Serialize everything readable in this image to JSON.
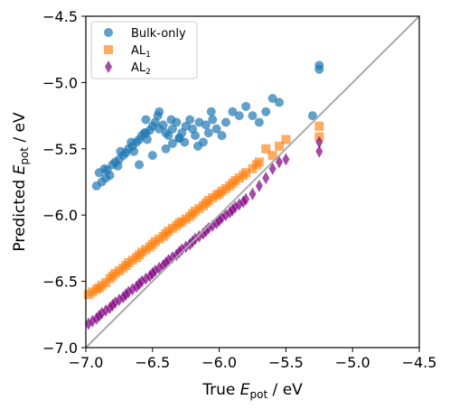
{
  "chart_data": {
    "type": "scatter",
    "xlabel_main": "True ",
    "xlabel_sym": "E",
    "xlabel_sub": "pot",
    "xlabel_unit": " / eV",
    "ylabel_main": "Predicted ",
    "ylabel_sym": "E",
    "ylabel_sub": "pot",
    "ylabel_unit": " / eV",
    "xlim": [
      -7.0,
      -4.5
    ],
    "ylim": [
      -7.0,
      -4.5
    ],
    "xticks": [
      -7.0,
      -6.5,
      -6.0,
      -5.5,
      -5.0,
      -4.5
    ],
    "xtick_labels": [
      "−7.0",
      "−6.5",
      "−6.0",
      "−5.5",
      "−5.0",
      "−4.5"
    ],
    "yticks": [
      -7.0,
      -6.5,
      -6.0,
      -5.5,
      -5.0,
      -4.5
    ],
    "ytick_labels": [
      "−7.0",
      "−6.5",
      "−6.0",
      "−5.5",
      "−5.0",
      "−4.5"
    ],
    "grid": false,
    "legend_position": "top-left",
    "reference_line": {
      "x": [
        -7.0,
        -4.5
      ],
      "y": [
        -7.0,
        -4.5
      ],
      "color": "#aaaaaa"
    },
    "series": [
      {
        "name": "Bulk-only",
        "marker": "circle",
        "color": "#1f77b4",
        "alpha": 0.7,
        "x": [
          -6.92,
          -6.88,
          -6.85,
          -6.82,
          -6.9,
          -6.86,
          -6.8,
          -6.78,
          -6.75,
          -6.72,
          -6.7,
          -6.68,
          -6.65,
          -6.62,
          -6.6,
          -6.58,
          -6.55,
          -6.52,
          -6.5,
          -6.48,
          -6.45,
          -6.42,
          -6.4,
          -6.38,
          -6.35,
          -6.32,
          -6.3,
          -6.28,
          -6.25,
          -6.22,
          -6.2,
          -6.18,
          -6.15,
          -6.12,
          -6.1,
          -6.08,
          -6.05,
          -6.02,
          -5.98,
          -5.95,
          -5.9,
          -5.85,
          -5.8,
          -5.75,
          -5.7,
          -5.65,
          -5.6,
          -5.55,
          -5.3,
          -5.25,
          -5.25,
          -6.74,
          -6.66,
          -6.56,
          -6.46,
          -6.36,
          -6.26,
          -6.16,
          -6.06,
          -6.6,
          -6.5,
          -6.4,
          -6.3,
          -6.55,
          -6.45,
          -6.35,
          -6.84,
          -6.76,
          -6.64,
          -6.54
        ],
        "y": [
          -5.78,
          -5.75,
          -5.72,
          -5.7,
          -5.68,
          -5.65,
          -5.62,
          -5.6,
          -5.58,
          -5.55,
          -5.53,
          -5.5,
          -5.48,
          -5.45,
          -5.43,
          -5.4,
          -5.38,
          -5.36,
          -5.33,
          -5.3,
          -5.35,
          -5.32,
          -5.38,
          -5.4,
          -5.35,
          -5.3,
          -5.42,
          -5.38,
          -5.33,
          -5.28,
          -5.35,
          -5.4,
          -5.3,
          -5.45,
          -5.32,
          -5.38,
          -5.28,
          -5.35,
          -5.4,
          -5.3,
          -5.22,
          -5.25,
          -5.18,
          -5.25,
          -5.3,
          -5.22,
          -5.12,
          -5.15,
          -5.25,
          -4.9,
          -4.87,
          -5.52,
          -5.45,
          -5.38,
          -5.25,
          -5.28,
          -5.45,
          -5.48,
          -5.22,
          -5.62,
          -5.55,
          -5.5,
          -5.42,
          -5.28,
          -5.22,
          -5.46,
          -5.66,
          -5.63,
          -5.52,
          -5.43
        ]
      },
      {
        "name": "AL",
        "name_sub": "1",
        "marker": "square",
        "color": "#ff7f0e",
        "alpha": 0.65,
        "x": [
          -6.98,
          -6.95,
          -6.92,
          -6.9,
          -6.88,
          -6.85,
          -6.82,
          -6.8,
          -6.78,
          -6.75,
          -6.72,
          -6.7,
          -6.68,
          -6.65,
          -6.62,
          -6.6,
          -6.58,
          -6.55,
          -6.52,
          -6.5,
          -6.48,
          -6.45,
          -6.42,
          -6.4,
          -6.38,
          -6.35,
          -6.32,
          -6.3,
          -6.28,
          -6.25,
          -6.22,
          -6.2,
          -6.18,
          -6.15,
          -6.12,
          -6.1,
          -6.08,
          -6.05,
          -6.02,
          -6.0,
          -5.98,
          -5.95,
          -5.92,
          -5.9,
          -5.88,
          -5.85,
          -5.82,
          -5.8,
          -5.75,
          -5.72,
          -5.7,
          -5.65,
          -5.6,
          -5.55,
          -5.5,
          -5.25,
          -5.25
        ],
        "y": [
          -6.6,
          -6.58,
          -6.56,
          -6.55,
          -6.53,
          -6.51,
          -6.48,
          -6.46,
          -6.44,
          -6.42,
          -6.4,
          -6.38,
          -6.36,
          -6.34,
          -6.32,
          -6.3,
          -6.28,
          -6.26,
          -6.24,
          -6.22,
          -6.2,
          -6.18,
          -6.16,
          -6.14,
          -6.12,
          -6.1,
          -6.08,
          -6.06,
          -6.05,
          -6.03,
          -6.01,
          -5.99,
          -5.97,
          -5.95,
          -5.93,
          -5.91,
          -5.89,
          -5.87,
          -5.85,
          -5.84,
          -5.82,
          -5.8,
          -5.78,
          -5.76,
          -5.74,
          -5.72,
          -5.7,
          -5.68,
          -5.65,
          -5.62,
          -5.6,
          -5.5,
          -5.55,
          -5.48,
          -5.43,
          -5.33,
          -5.41
        ]
      },
      {
        "name": "AL",
        "name_sub": "2",
        "marker": "diamond",
        "color": "#800080",
        "alpha": 0.7,
        "x": [
          -6.98,
          -6.95,
          -6.92,
          -6.9,
          -6.88,
          -6.85,
          -6.82,
          -6.8,
          -6.78,
          -6.75,
          -6.72,
          -6.7,
          -6.68,
          -6.65,
          -6.62,
          -6.6,
          -6.58,
          -6.55,
          -6.52,
          -6.5,
          -6.48,
          -6.45,
          -6.42,
          -6.4,
          -6.38,
          -6.35,
          -6.32,
          -6.3,
          -6.28,
          -6.25,
          -6.22,
          -6.2,
          -6.18,
          -6.15,
          -6.12,
          -6.1,
          -6.08,
          -6.05,
          -6.02,
          -6.0,
          -5.98,
          -5.95,
          -5.92,
          -5.9,
          -5.88,
          -5.85,
          -5.82,
          -5.8,
          -5.75,
          -5.7,
          -5.65,
          -5.6,
          -5.55,
          -5.5,
          -5.25,
          -5.25
        ],
        "y": [
          -6.82,
          -6.8,
          -6.78,
          -6.76,
          -6.74,
          -6.72,
          -6.7,
          -6.68,
          -6.66,
          -6.64,
          -6.62,
          -6.6,
          -6.58,
          -6.56,
          -6.54,
          -6.52,
          -6.5,
          -6.48,
          -6.46,
          -6.44,
          -6.42,
          -6.4,
          -6.38,
          -6.36,
          -6.34,
          -6.32,
          -6.3,
          -6.28,
          -6.26,
          -6.24,
          -6.22,
          -6.2,
          -6.18,
          -6.16,
          -6.14,
          -6.12,
          -6.1,
          -6.08,
          -6.06,
          -6.04,
          -6.02,
          -6.0,
          -5.98,
          -5.96,
          -5.94,
          -5.92,
          -5.9,
          -5.88,
          -5.84,
          -5.78,
          -5.72,
          -5.65,
          -5.6,
          -5.58,
          -5.45,
          -5.52
        ]
      }
    ]
  }
}
